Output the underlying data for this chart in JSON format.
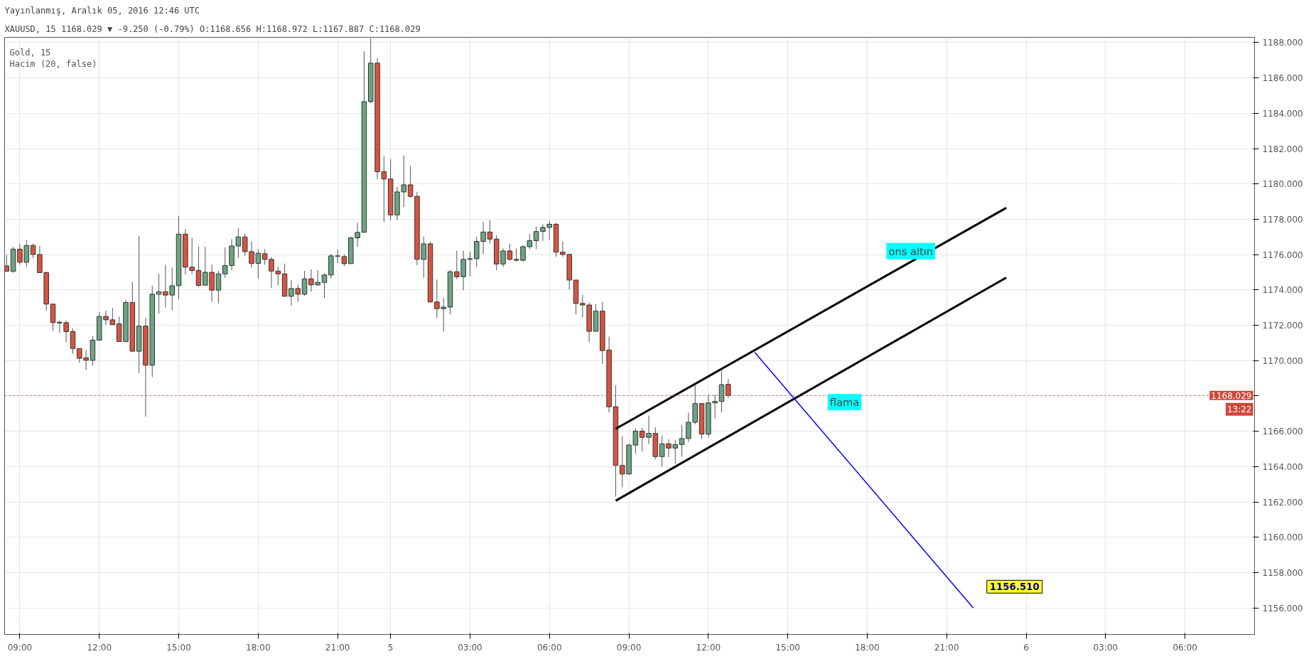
{
  "chart_data": {
    "type": "candlestick",
    "title": "XAUUSD, 15 1168.029 ▼ -9.250 (-0.79%) O:1168.656 H:1168.972 L:1167.887 C:1168.029",
    "subtitle": "Yayınlanmış, Aralık 05, 2016 12:46 UTC",
    "categories": [
      null,
      null,
      "09:00",
      null,
      null,
      null,
      null,
      null,
      null,
      null,
      null,
      null,
      null,
      null,
      "12:00",
      null,
      null,
      null,
      null,
      null,
      null,
      null,
      null,
      null,
      null,
      null,
      "15:00",
      null,
      null,
      null,
      null,
      null,
      null,
      null,
      null,
      null,
      null,
      null,
      "18:00",
      null,
      null,
      null,
      null,
      null,
      null,
      null,
      null,
      null,
      null,
      null,
      "21:00",
      null,
      null,
      null,
      null,
      null,
      null,
      null,
      "5",
      null,
      null,
      null,
      null,
      null,
      null,
      null,
      null,
      null,
      null,
      null,
      "03:00",
      null,
      null,
      null,
      null,
      null,
      null,
      null,
      null,
      null,
      null,
      null,
      "06:00",
      null,
      null,
      null,
      null,
      null,
      null,
      null,
      null,
      null,
      null,
      null,
      "09:00",
      null,
      null,
      null,
      null,
      null,
      null,
      null,
      null,
      null,
      null,
      null,
      "12:00",
      null,
      null,
      null,
      null,
      null,
      null,
      null,
      null,
      null,
      null,
      null,
      "15:00",
      null,
      null,
      null,
      null,
      null,
      null,
      null,
      null,
      null,
      null,
      null,
      "18:00",
      null,
      null,
      null,
      null,
      null,
      null,
      null,
      null,
      null,
      null,
      null,
      "21:00",
      null,
      null,
      null,
      null,
      null,
      null,
      null,
      null,
      null,
      null,
      null,
      "6",
      null,
      null,
      null,
      null,
      null,
      null,
      null,
      null,
      null,
      null,
      null,
      "03:00",
      null,
      null,
      null,
      null,
      null,
      null,
      null,
      null,
      null,
      null,
      null,
      "06:00",
      null,
      null,
      null,
      null,
      null,
      null,
      null,
      null,
      null,
      null
    ],
    "ohlc": [
      [
        1175.36,
        1176.0,
        1175.06,
        1175.06
      ],
      [
        1175.05,
        1176.44,
        1174.98,
        1176.31
      ],
      [
        1176.31,
        1176.61,
        1175.43,
        1175.57
      ],
      [
        1175.57,
        1176.82,
        1175.31,
        1176.52
      ],
      [
        1176.52,
        1176.63,
        1175.8,
        1176.01
      ],
      [
        1176.01,
        1176.49,
        1174.98,
        1174.98
      ],
      [
        1174.98,
        1175.05,
        1172.83,
        1173.2
      ],
      [
        1173.2,
        1173.2,
        1171.69,
        1172.15
      ],
      [
        1172.17,
        1172.27,
        1171.57,
        1172.13
      ],
      [
        1172.15,
        1172.27,
        1171.04,
        1171.64
      ],
      [
        1171.64,
        1171.83,
        1170.39,
        1170.69
      ],
      [
        1170.69,
        1170.69,
        1169.88,
        1170.13
      ],
      [
        1170.16,
        1170.6,
        1169.46,
        1170.02
      ],
      [
        1170.02,
        1171.39,
        1169.72,
        1171.16
      ],
      [
        1171.16,
        1172.75,
        1171.16,
        1172.5
      ],
      [
        1172.5,
        1172.83,
        1172.01,
        1172.31
      ],
      [
        1172.31,
        1172.99,
        1172.01,
        1172.04
      ],
      [
        1172.08,
        1172.5,
        1171.08,
        1171.08
      ],
      [
        1171.08,
        1173.45,
        1171.08,
        1173.29
      ],
      [
        1173.29,
        1174.45,
        1170.53,
        1170.53
      ],
      [
        1170.53,
        1177.07,
        1169.3,
        1171.95
      ],
      [
        1171.95,
        1172.41,
        1166.82,
        1169.74
      ],
      [
        1169.74,
        1174.24,
        1169.07,
        1173.76
      ],
      [
        1173.76,
        1174.91,
        1172.66,
        1173.9
      ],
      [
        1173.9,
        1175.43,
        1173.01,
        1173.71
      ],
      [
        1173.71,
        1175.26,
        1172.85,
        1174.24
      ],
      [
        1174.24,
        1178.18,
        1173.47,
        1177.16
      ],
      [
        1177.16,
        1177.44,
        1174.87,
        1175.29
      ],
      [
        1175.29,
        1176.96,
        1174.91,
        1175.1
      ],
      [
        1175.1,
        1176.45,
        1174.17,
        1174.26
      ],
      [
        1174.27,
        1176.45,
        1174.27,
        1175.0
      ],
      [
        1175.0,
        1175.43,
        1173.33,
        1173.99
      ],
      [
        1173.99,
        1175.08,
        1173.24,
        1174.91
      ],
      [
        1174.91,
        1176.4,
        1174.68,
        1175.38
      ],
      [
        1175.38,
        1176.88,
        1175.12,
        1176.49
      ],
      [
        1176.49,
        1177.51,
        1175.82,
        1177.0
      ],
      [
        1177.0,
        1177.19,
        1175.91,
        1176.17
      ],
      [
        1176.17,
        1176.75,
        1175.26,
        1175.5
      ],
      [
        1175.5,
        1176.31,
        1174.64,
        1176.08
      ],
      [
        1176.05,
        1176.31,
        1175.43,
        1175.73
      ],
      [
        1175.73,
        1175.87,
        1174.12,
        1175.07
      ],
      [
        1175.07,
        1175.33,
        1174.26,
        1174.91
      ],
      [
        1174.91,
        1175.49,
        1173.64,
        1173.64
      ],
      [
        1173.64,
        1174.56,
        1173.11,
        1174.08
      ],
      [
        1174.08,
        1174.29,
        1173.33,
        1173.76
      ],
      [
        1173.76,
        1175.08,
        1173.68,
        1174.63
      ],
      [
        1174.63,
        1175.17,
        1173.9,
        1174.29
      ],
      [
        1174.29,
        1175.12,
        1174.24,
        1174.43
      ],
      [
        1174.43,
        1174.94,
        1173.55,
        1174.85
      ],
      [
        1174.85,
        1176.05,
        1174.64,
        1175.93
      ],
      [
        1175.93,
        1176.28,
        1175.52,
        1175.91
      ],
      [
        1175.89,
        1176.01,
        1175.35,
        1175.49
      ],
      [
        1175.49,
        1177.02,
        1175.49,
        1176.95
      ],
      [
        1176.95,
        1177.81,
        1176.44,
        1177.26
      ],
      [
        1177.26,
        1187.51,
        1177.26,
        1184.66
      ],
      [
        1184.66,
        1188.26,
        1184.57,
        1186.84
      ],
      [
        1186.84,
        1187.12,
        1180.27,
        1180.69
      ],
      [
        1180.69,
        1181.59,
        1177.86,
        1180.28
      ],
      [
        1180.28,
        1181.41,
        1177.95,
        1178.25
      ],
      [
        1178.25,
        1179.83,
        1177.95,
        1179.55
      ],
      [
        1179.55,
        1181.62,
        1178.69,
        1179.95
      ],
      [
        1179.95,
        1181.02,
        1179.21,
        1179.3
      ],
      [
        1179.3,
        1179.56,
        1175.4,
        1175.73
      ],
      [
        1175.73,
        1177.02,
        1174.68,
        1176.61
      ],
      [
        1176.61,
        1176.72,
        1173.32,
        1173.32
      ],
      [
        1173.32,
        1174.59,
        1172.41,
        1172.94
      ],
      [
        1172.94,
        1173.55,
        1171.64,
        1173.03
      ],
      [
        1173.03,
        1175.12,
        1172.62,
        1175.03
      ],
      [
        1175.03,
        1176.22,
        1174.61,
        1174.75
      ],
      [
        1174.75,
        1176.22,
        1173.99,
        1175.73
      ],
      [
        1175.73,
        1176.17,
        1174.78,
        1175.77
      ],
      [
        1175.77,
        1177.02,
        1175.29,
        1176.75
      ],
      [
        1176.75,
        1177.84,
        1176.03,
        1177.28
      ],
      [
        1177.28,
        1177.95,
        1176.63,
        1176.88
      ],
      [
        1176.88,
        1177.1,
        1175.12,
        1175.47
      ],
      [
        1175.47,
        1176.35,
        1175.29,
        1176.21
      ],
      [
        1176.21,
        1176.63,
        1175.66,
        1175.73
      ],
      [
        1175.73,
        1176.35,
        1175.61,
        1175.68
      ],
      [
        1175.68,
        1176.52,
        1175.61,
        1176.45
      ],
      [
        1176.45,
        1177.16,
        1176.31,
        1176.79
      ],
      [
        1176.79,
        1177.6,
        1176.31,
        1177.31
      ],
      [
        1177.31,
        1177.72,
        1176.79,
        1177.54
      ],
      [
        1177.54,
        1177.89,
        1176.84,
        1177.72
      ],
      [
        1177.72,
        1177.81,
        1175.87,
        1176.14
      ],
      [
        1176.14,
        1176.75,
        1175.87,
        1176.01
      ],
      [
        1176.01,
        1176.05,
        1174.03,
        1174.56
      ],
      [
        1174.56,
        1174.56,
        1172.62,
        1173.24
      ],
      [
        1173.24,
        1173.73,
        1172.45,
        1173.15
      ],
      [
        1173.15,
        1173.29,
        1171.04,
        1171.66
      ],
      [
        1171.66,
        1173.2,
        1171.66,
        1172.8
      ],
      [
        1172.8,
        1173.32,
        1169.81,
        1170.57
      ],
      [
        1170.6,
        1171.36,
        1167.06,
        1167.39
      ],
      [
        1167.39,
        1168.6,
        1162.3,
        1164.07
      ],
      [
        1164.07,
        1165.71,
        1162.83,
        1163.58
      ],
      [
        1163.58,
        1165.31,
        1163.58,
        1165.22
      ],
      [
        1165.22,
        1166.17,
        1164.74,
        1166.01
      ],
      [
        1166.01,
        1166.21,
        1164.86,
        1165.66
      ],
      [
        1165.66,
        1166.9,
        1165.29,
        1165.88
      ],
      [
        1165.88,
        1166.23,
        1164.42,
        1164.57
      ],
      [
        1164.57,
        1165.75,
        1164.0,
        1165.29
      ],
      [
        1165.29,
        1165.55,
        1164.53,
        1165.05
      ],
      [
        1165.05,
        1165.49,
        1164.17,
        1165.25
      ],
      [
        1165.25,
        1166.36,
        1164.57,
        1165.59
      ],
      [
        1165.59,
        1167.06,
        1165.39,
        1166.51
      ],
      [
        1166.51,
        1168.6,
        1166.4,
        1167.57
      ],
      [
        1167.57,
        1167.57,
        1165.58,
        1165.84
      ],
      [
        1165.84,
        1168.07,
        1165.66,
        1167.61
      ],
      [
        1167.61,
        1168.07,
        1166.73,
        1167.69
      ],
      [
        1167.69,
        1169.42,
        1167.06,
        1168.64
      ],
      [
        1168.656,
        1168.972,
        1167.887,
        1168.029
      ],
      null,
      null,
      null,
      null,
      null,
      null,
      null,
      null,
      null,
      null,
      null,
      null,
      null,
      null,
      null,
      null,
      null,
      null,
      null,
      null,
      null,
      null,
      null,
      null,
      null,
      null,
      null,
      null,
      null,
      null,
      null,
      null,
      null,
      null,
      null,
      null,
      null,
      null,
      null,
      null,
      null,
      null,
      null,
      null,
      null,
      null,
      null,
      null,
      null,
      null,
      null,
      null,
      null,
      null,
      null,
      null,
      null,
      null,
      null,
      null,
      null,
      null,
      null,
      null,
      null,
      null,
      null,
      null,
      null,
      null,
      null,
      null,
      null,
      null,
      null,
      null,
      null,
      null,
      null
    ],
    "series": [
      {
        "type": "line",
        "color": "#000000",
        "values": [
          null,
          null,
          null,
          null,
          null,
          null,
          null,
          null,
          null,
          null,
          null,
          null,
          null,
          null,
          null,
          null,
          null,
          null,
          null,
          null,
          null,
          null,
          null,
          null,
          null,
          null,
          null,
          null,
          null,
          null,
          null,
          null,
          null,
          null,
          null,
          null,
          null,
          null,
          null,
          null,
          null,
          null,
          null,
          null,
          null,
          null,
          null,
          null,
          null,
          null,
          null,
          null,
          null,
          null,
          null,
          null,
          null,
          null,
          null,
          null,
          null,
          null,
          null,
          null,
          null,
          null,
          null,
          null,
          null,
          null,
          null,
          null,
          null,
          null,
          null,
          null,
          null,
          null,
          null,
          null,
          null,
          null,
          null,
          null,
          null,
          null,
          null,
          null,
          null,
          null,
          null,
          null,
          1166.14,
          null,
          null,
          null,
          null,
          null,
          null,
          null,
          null,
          null,
          null,
          null,
          null,
          null,
          null,
          null,
          null,
          null,
          null,
          null,
          null,
          null,
          null,
          null,
          null,
          null,
          null,
          null,
          null,
          null,
          null,
          null,
          null,
          null,
          null,
          null,
          null,
          null,
          null,
          null,
          null,
          null,
          null,
          null,
          null,
          null,
          null,
          null,
          null,
          null,
          null,
          null,
          null,
          null,
          null,
          null,
          null,
          null,
          null,
          1178.65,
          null,
          null,
          null,
          null,
          null,
          null,
          null,
          null,
          null,
          null,
          null,
          null,
          null,
          null,
          null,
          null,
          null,
          null,
          null,
          null,
          null,
          null,
          null,
          null,
          null,
          null,
          null,
          null,
          null,
          null,
          null,
          null,
          null,
          null,
          null,
          null,
          null
        ]
      },
      {
        "type": "line",
        "color": "#000000",
        "values": [
          null,
          null,
          null,
          null,
          null,
          null,
          null,
          null,
          null,
          null,
          null,
          null,
          null,
          null,
          null,
          null,
          null,
          null,
          null,
          null,
          null,
          null,
          null,
          null,
          null,
          null,
          null,
          null,
          null,
          null,
          null,
          null,
          null,
          null,
          null,
          null,
          null,
          null,
          null,
          null,
          null,
          null,
          null,
          null,
          null,
          null,
          null,
          null,
          null,
          null,
          null,
          null,
          null,
          null,
          null,
          null,
          null,
          null,
          null,
          null,
          null,
          null,
          null,
          null,
          null,
          null,
          null,
          null,
          null,
          null,
          null,
          null,
          null,
          null,
          null,
          null,
          null,
          null,
          null,
          null,
          null,
          null,
          null,
          null,
          null,
          null,
          null,
          null,
          null,
          null,
          null,
          null,
          1162.07,
          null,
          null,
          null,
          null,
          null,
          null,
          null,
          null,
          null,
          null,
          null,
          null,
          null,
          null,
          null,
          null,
          null,
          null,
          null,
          null,
          null,
          null,
          null,
          null,
          null,
          null,
          null,
          null,
          null,
          null,
          null,
          null,
          null,
          null,
          null,
          null,
          null,
          null,
          null,
          null,
          null,
          null,
          null,
          null,
          null,
          null,
          null,
          null,
          null,
          null,
          null,
          null,
          null,
          null,
          null,
          null,
          null,
          null,
          1174.7,
          null,
          null,
          null,
          null,
          null,
          null,
          null,
          null,
          null,
          null,
          null,
          null,
          null,
          null,
          null,
          null,
          null,
          null,
          null,
          null,
          null,
          null,
          null,
          null,
          null,
          null,
          null,
          null,
          null,
          null,
          null,
          null,
          null,
          null,
          null,
          null,
          null
        ]
      },
      {
        "type": "line",
        "color": "#0000ff",
        "values": [
          null,
          null,
          null,
          null,
          null,
          null,
          null,
          null,
          null,
          null,
          null,
          null,
          null,
          null,
          null,
          null,
          null,
          null,
          null,
          null,
          null,
          null,
          null,
          null,
          null,
          null,
          null,
          null,
          null,
          null,
          null,
          null,
          null,
          null,
          null,
          null,
          null,
          null,
          null,
          null,
          null,
          null,
          null,
          null,
          null,
          null,
          null,
          null,
          null,
          null,
          null,
          null,
          null,
          null,
          null,
          null,
          null,
          null,
          null,
          null,
          null,
          null,
          null,
          null,
          null,
          null,
          null,
          null,
          null,
          null,
          null,
          null,
          null,
          null,
          null,
          null,
          null,
          null,
          null,
          null,
          null,
          null,
          null,
          null,
          null,
          null,
          null,
          null,
          null,
          null,
          null,
          null,
          null,
          null,
          null,
          null,
          null,
          null,
          null,
          null,
          null,
          null,
          null,
          null,
          null,
          null,
          null,
          null,
          null,
          null,
          null,
          null,
          null,
          1170.47,
          null,
          null,
          null,
          null,
          null,
          null,
          null,
          null,
          null,
          null,
          null,
          null,
          null,
          null,
          null,
          null,
          null,
          null,
          null,
          null,
          null,
          null,
          null,
          null,
          null,
          null,
          null,
          null,
          null,
          null,
          null,
          null,
          1156.01,
          null,
          null,
          null,
          null,
          null,
          null,
          null,
          null,
          null,
          null,
          null,
          null,
          null,
          null,
          null,
          null,
          null,
          null,
          null,
          null,
          null,
          null,
          null,
          null,
          null,
          null,
          null,
          null,
          null,
          null,
          null,
          null,
          null,
          null,
          null,
          null,
          null,
          null,
          null,
          null,
          null,
          null
        ]
      }
    ],
    "ylim": [
      1154.5,
      1188.3
    ],
    "yticks": [
      {
        "value": 1156,
        "label": "1156.000"
      },
      {
        "value": 1158,
        "label": "1158.000"
      },
      {
        "value": 1160,
        "label": "1160.000"
      },
      {
        "value": 1162,
        "label": "1162.000"
      },
      {
        "value": 1164,
        "label": "1164.000"
      },
      {
        "value": 1166,
        "label": "1166.000"
      },
      {
        "value": 1168,
        "label": null
      },
      {
        "value": 1170,
        "label": "1170.000"
      },
      {
        "value": 1172,
        "label": "1172.000"
      },
      {
        "value": 1174,
        "label": "1174.000"
      },
      {
        "value": 1176,
        "label": "1176.000"
      },
      {
        "value": 1178,
        "label": "1178.000"
      },
      {
        "value": 1180,
        "label": "1180.000"
      },
      {
        "value": 1182,
        "label": "1182.000"
      },
      {
        "value": 1184,
        "label": "1184.000"
      },
      {
        "value": 1186,
        "label": "1186.000"
      },
      {
        "value": 1188,
        "label": "1188.000"
      }
    ],
    "ref_lines": [
      {
        "axis": "y",
        "value": 1168.029,
        "label": "1168.029",
        "color": "#d0463b",
        "line_style": "dotted"
      }
    ],
    "annotations": [
      "Gold, 15",
      "Hacim (20, false)",
      "ons altın",
      "flama",
      "1156.510",
      "13:22"
    ],
    "grid": true,
    "marker": "none"
  }
}
